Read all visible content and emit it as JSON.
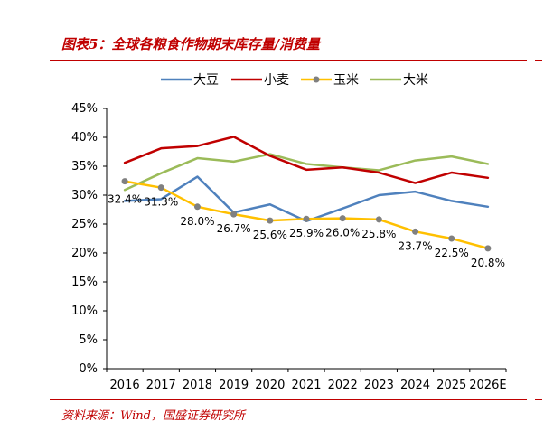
{
  "header": {
    "title": "图表5：全球各粮食作物期末库存量/消费量"
  },
  "footer": {
    "source": "资料来源：Wind，国盛证券研究所"
  },
  "colors": {
    "title_red": "#c00000",
    "soybean": "#4f81bd",
    "wheat": "#c00000",
    "corn": "#ffc000",
    "corn_marker": "#808080",
    "rice": "#9bbb59"
  },
  "chart_data": {
    "type": "line",
    "title": "",
    "xlabel": "",
    "ylabel": "",
    "categories": [
      "2016",
      "2017",
      "2018",
      "2019",
      "2020",
      "2021",
      "2022",
      "2023",
      "2024",
      "2025",
      "2026E"
    ],
    "y_ticks": [
      "0%",
      "5%",
      "10%",
      "15%",
      "20%",
      "25%",
      "30%",
      "35%",
      "40%",
      "45%"
    ],
    "ylim": [
      0,
      45
    ],
    "grid": false,
    "legend": "top",
    "series": [
      {
        "name": "大豆",
        "color": "#4f81bd",
        "values": [
          29.0,
          29.3,
          33.2,
          27.0,
          28.4,
          25.5,
          27.7,
          30.0,
          30.6,
          29.0,
          28.0
        ]
      },
      {
        "name": "小麦",
        "color": "#c00000",
        "values": [
          35.6,
          38.1,
          38.5,
          40.1,
          36.8,
          34.4,
          34.8,
          33.9,
          32.1,
          33.9,
          33.0
        ]
      },
      {
        "name": "玉米",
        "color": "#ffc000",
        "marker_color": "#808080",
        "values": [
          32.4,
          31.3,
          28.0,
          26.7,
          25.6,
          25.9,
          26.0,
          25.8,
          23.7,
          22.5,
          20.8
        ],
        "labels": [
          "32.4%",
          "31.3%",
          "28.0%",
          "26.7%",
          "25.6%",
          "25.9%",
          "26.0%",
          "25.8%",
          "23.7%",
          "22.5%",
          "20.8%"
        ]
      },
      {
        "name": "大米",
        "color": "#9bbb59",
        "values": [
          30.9,
          33.8,
          36.4,
          35.8,
          37.1,
          35.4,
          34.8,
          34.3,
          36.0,
          36.7,
          35.4
        ]
      }
    ]
  }
}
